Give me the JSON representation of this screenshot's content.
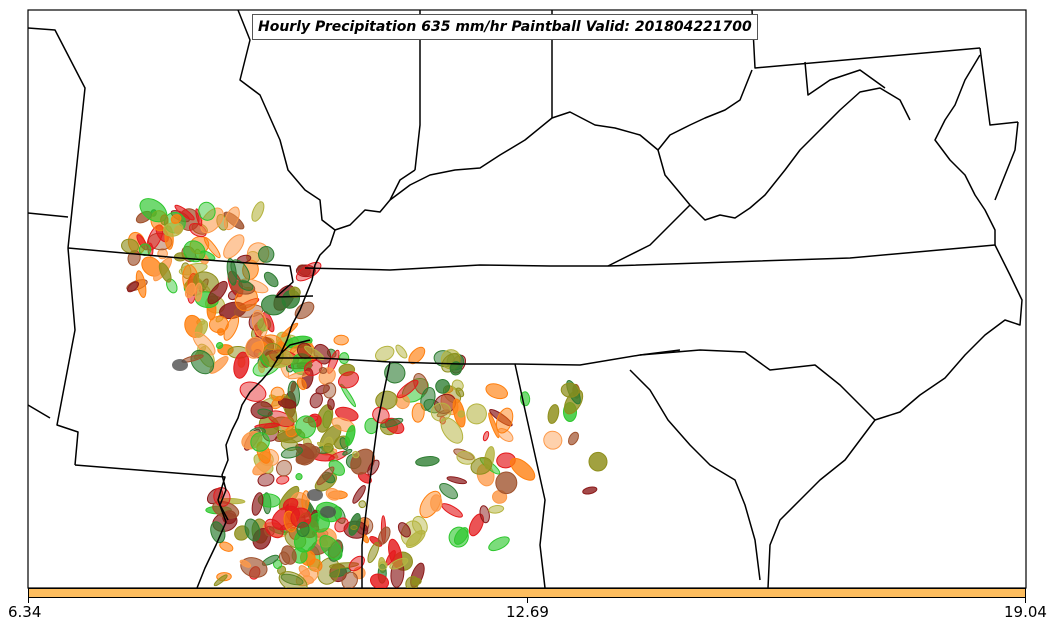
{
  "title": "Hourly Precipitation 635 mm/hr Paintball Valid: 201804221700",
  "colorbar": {
    "color": "#fdbd5e",
    "ticks": [
      "6.34",
      "12.69",
      "19.04"
    ]
  },
  "palette": {
    "red": "#e41a1c",
    "dark_red": "#8b1a1a",
    "orange": "#ff7f0e",
    "light_orange": "#fd9a4a",
    "olive": "#8f8f1c",
    "khaki": "#b5b440",
    "green": "#2ec72e",
    "dark_green": "#2e7d32",
    "brown": "#a0522d",
    "gray": "#4d4d4d",
    "boundary": "#000000"
  }
}
